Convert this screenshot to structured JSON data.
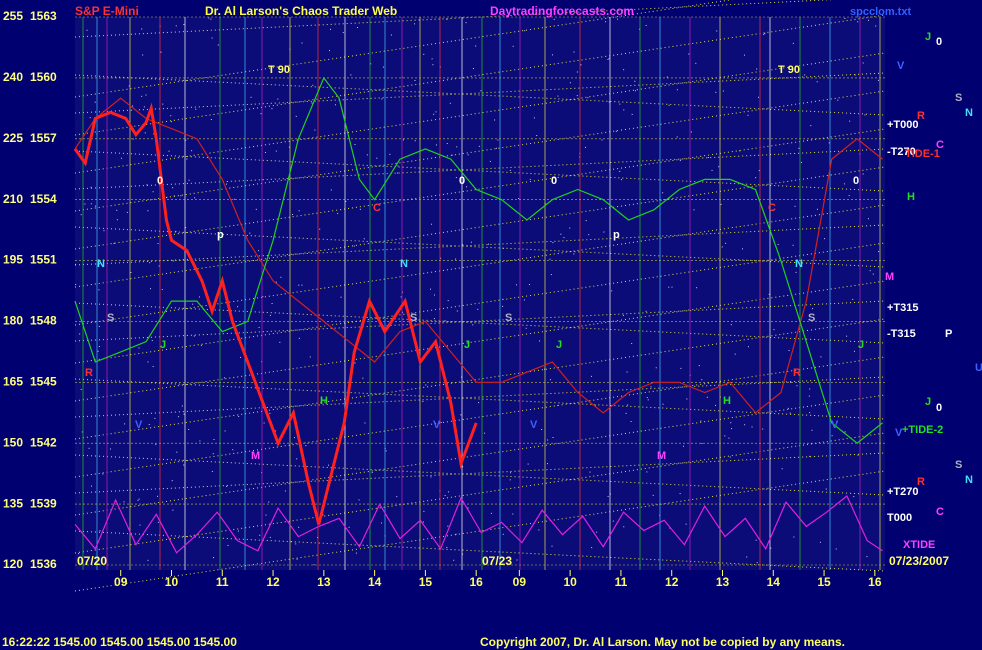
{
  "chart_data": {
    "type": "line",
    "header": [
      "S&P E-Mini",
      "Dr. Al Larson's Chaos Trader Web",
      "Daytradingforecasts.com",
      "spcclom.txt"
    ],
    "footer": [
      "16:22:22  1545.00 1545.00 1545.00 1545.00",
      "Copyright 2007, Dr. Al Larson. May not be copied by any means."
    ],
    "dates": [
      "07/20",
      "07/23",
      "07/23/2007"
    ],
    "ylim": [
      1536,
      1563
    ],
    "yticks": [
      1536,
      1539,
      1542,
      1545,
      1548,
      1551,
      1554,
      1557,
      1560,
      1563
    ],
    "y2lim": [
      120,
      255
    ],
    "y2ticks": [
      120,
      135,
      150,
      165,
      180,
      195,
      210,
      225,
      240,
      255
    ],
    "xlim": [
      8.1,
      24.05
    ],
    "xticks": [
      {
        "value": 9,
        "label": "09"
      },
      {
        "value": 10,
        "label": "10"
      },
      {
        "value": 11,
        "label": "11"
      },
      12,
      13,
      14,
      15,
      16,
      {
        "value": 16.85,
        "label": "09"
      },
      {
        "value": 17.85,
        "label": "10"
      },
      {
        "value": 18.85,
        "label": "11"
      },
      {
        "value": 19.85,
        "label": "12"
      },
      {
        "value": 20.85,
        "label": "13"
      },
      {
        "value": 21.85,
        "label": "14"
      },
      {
        "value": 22.85,
        "label": "15"
      },
      {
        "value": 23.85,
        "label": "16"
      }
    ],
    "grid": true,
    "series": [
      {
        "color": "#ff2020",
        "x": [
          8.1,
          8.3,
          8.5,
          8.8,
          9.1,
          9.3,
          9.5,
          9.6,
          9.7,
          9.9,
          10.0,
          10.3,
          10.6,
          10.8,
          11.0,
          11.2,
          11.5,
          11.8,
          12.1,
          12.4,
          12.7,
          12.9,
          13.1,
          13.4,
          13.6,
          13.9,
          14.2,
          14.6,
          14.9,
          15.2,
          15.5,
          15.7,
          16.0
        ],
        "values": [
          1556.5,
          1555.8,
          1558.0,
          1558.3,
          1558.0,
          1557.2,
          1557.8,
          1558.5,
          1557.0,
          1553.0,
          1552.0,
          1551.5,
          1550.0,
          1548.5,
          1550.0,
          1548.0,
          1546.0,
          1544.0,
          1542.0,
          1543.5,
          1540.0,
          1538.0,
          1540.0,
          1543.0,
          1546.5,
          1549.0,
          1547.5,
          1549.0,
          1546.0,
          1547.0,
          1544.0,
          1541.0,
          1543.0
        ]
      },
      {
        "color": "#20d020",
        "x": [
          8.1,
          8.5,
          9,
          9.5,
          10,
          10.5,
          11,
          11.5,
          12,
          12.5,
          13,
          13.3,
          13.7,
          14,
          14.5,
          15,
          15.5,
          16,
          16.5,
          17,
          17.5,
          18,
          18.5,
          19,
          19.5,
          20,
          20.5,
          21,
          21.5,
          22,
          22.5,
          23,
          23.5,
          24
        ],
        "values": [
          1549,
          1546,
          1546.5,
          1547,
          1549,
          1549,
          1547.5,
          1548,
          1552,
          1557,
          1560,
          1559,
          1555,
          1554,
          1556,
          1556.5,
          1556,
          1554.5,
          1554,
          1553,
          1554,
          1554.5,
          1554,
          1553,
          1553.5,
          1554.5,
          1555,
          1555,
          1554.5,
          1551,
          1547,
          1543,
          1542,
          1543
        ]
      },
      {
        "color": "#d02020",
        "x": [
          8.1,
          8.5,
          9,
          9.5,
          10,
          10.5,
          11,
          11.5,
          12,
          12.5,
          13,
          13.5,
          14,
          14.5,
          15,
          15.5,
          16,
          16.5,
          17,
          17.5,
          18,
          18.5,
          19,
          19.5,
          20,
          20.5,
          21,
          21.5,
          22,
          22.5,
          23,
          23.5,
          24
        ],
        "values": [
          1556.5,
          1558,
          1559,
          1558,
          1557.5,
          1557,
          1555,
          1552,
          1550,
          1549,
          1548,
          1547,
          1546,
          1547.5,
          1548,
          1546.5,
          1545,
          1545,
          1545.5,
          1546,
          1544.5,
          1543.5,
          1544.5,
          1545,
          1545,
          1544.5,
          1545,
          1543.5,
          1544.5,
          1549,
          1556,
          1557,
          1556
        ]
      },
      {
        "color": "#e020e0",
        "x": [
          8.1,
          8.5,
          8.9,
          9.3,
          9.7,
          10.1,
          10.5,
          10.9,
          11.3,
          11.7,
          12.1,
          12.5,
          12.9,
          13.3,
          13.7,
          14.1,
          14.5,
          14.9,
          15.3,
          15.7,
          16.1,
          16.5,
          16.9,
          17.3,
          17.7,
          18.1,
          18.5,
          18.9,
          19.3,
          19.7,
          20.1,
          20.5,
          20.9,
          21.3,
          21.7,
          22.1,
          22.5,
          22.9,
          23.3,
          23.7,
          24
        ],
        "values": [
          1538,
          1536.8,
          1539.2,
          1537,
          1538.5,
          1536.6,
          1537.5,
          1538.6,
          1537.2,
          1536.7,
          1538.8,
          1537.4,
          1537.9,
          1538.3,
          1536.9,
          1539,
          1537.3,
          1538.2,
          1536.8,
          1539.3,
          1537.6,
          1538.1,
          1537.1,
          1538.7,
          1537.5,
          1538.4,
          1536.9,
          1538.6,
          1537.7,
          1538.2,
          1537,
          1538.9,
          1537.4,
          1538.3,
          1536.8,
          1539.1,
          1537.9,
          1538.6,
          1539.4,
          1537.2,
          1536.7
        ]
      }
    ],
    "annotations": [
      "T 90",
      "T 90",
      "0",
      "0",
      "0",
      "0",
      "p",
      "p",
      "N",
      "N",
      "N",
      "S",
      "S",
      "S",
      "S",
      "J",
      "J",
      "J",
      "J",
      "R",
      "R",
      "M",
      "M",
      "H",
      "H",
      "C",
      "C",
      "V",
      "V",
      "V",
      "V",
      "J",
      "0",
      "V",
      "R",
      "S",
      "N",
      "C",
      "+T000",
      "-T270",
      "TIDE-1",
      "H",
      "M",
      "+T315",
      "-T315",
      "P",
      "U",
      "J",
      "0",
      "+TIDE-2",
      "V",
      "S",
      "N",
      "R",
      "+T270",
      "C",
      "T000",
      "XTIDE"
    ]
  }
}
